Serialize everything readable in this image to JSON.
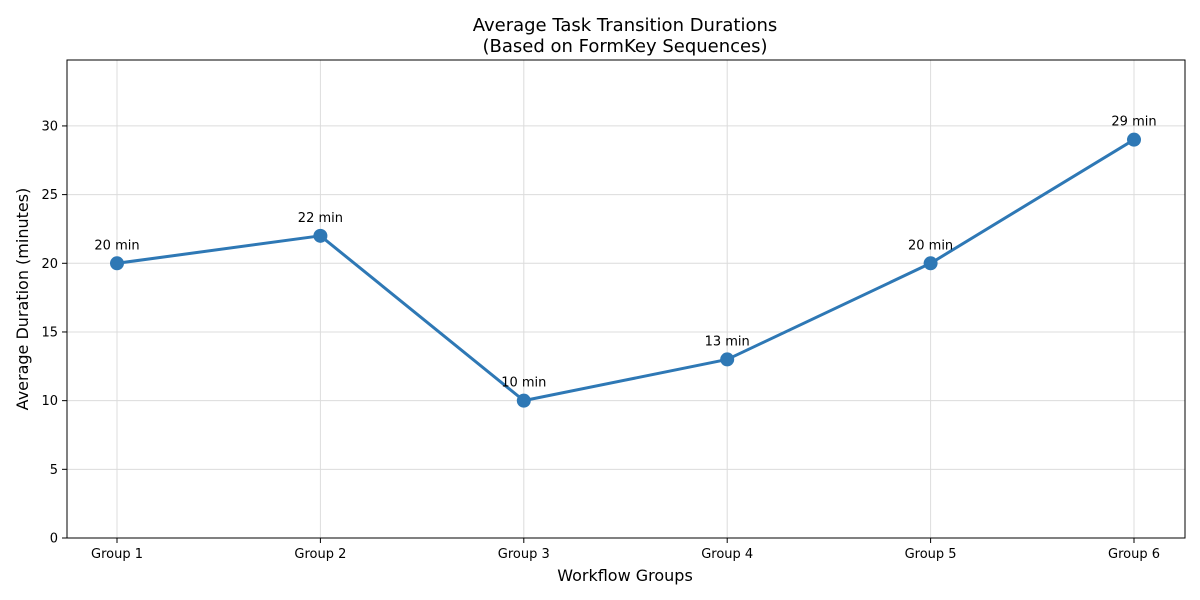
{
  "chart_data": {
    "type": "line",
    "title_line1": "Average Task Transition Durations",
    "title_line2": "(Based on FormKey Sequences)",
    "xlabel": "Workflow Groups",
    "ylabel": "Average Duration (minutes)",
    "categories": [
      "Group 1",
      "Group 2",
      "Group 3",
      "Group 4",
      "Group 5",
      "Group 6"
    ],
    "series": [
      {
        "values": [
          20,
          22,
          10,
          13,
          20,
          29
        ],
        "color": "#2e78b5"
      }
    ],
    "data_labels": [
      "20 min",
      "22 min",
      "10 min",
      "13 min",
      "20 min",
      "29 min"
    ],
    "ylim": [
      0,
      34.8
    ],
    "yticks": [
      0,
      5,
      10,
      15,
      20,
      25,
      30
    ],
    "grid": true
  }
}
